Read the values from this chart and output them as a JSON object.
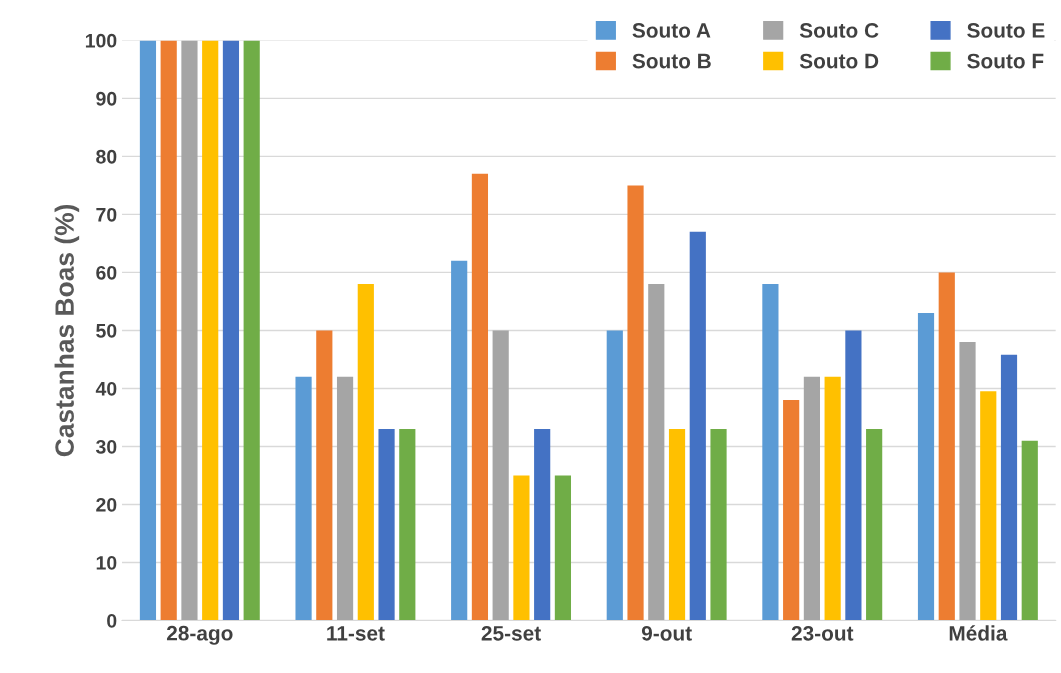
{
  "chart_data": {
    "type": "bar",
    "ylabel": "Castanhas Boas (%)",
    "categories": [
      "28-ago",
      "11-set",
      "25-set",
      "9-out",
      "23-out",
      "Média"
    ],
    "series": [
      {
        "name": "Souto A",
        "color": "#5b9bd5",
        "values": [
          100,
          42,
          62,
          50,
          58,
          53
        ]
      },
      {
        "name": "Souto B",
        "color": "#ed7d31",
        "values": [
          100,
          50,
          77,
          75,
          38,
          60
        ]
      },
      {
        "name": "Souto C",
        "color": "#a5a5a5",
        "values": [
          100,
          42,
          50,
          58,
          42,
          48
        ]
      },
      {
        "name": "Souto D",
        "color": "#ffc000",
        "values": [
          100,
          58,
          25,
          33,
          42,
          39.5
        ]
      },
      {
        "name": "Souto E",
        "color": "#4472c4",
        "values": [
          100,
          33,
          33,
          67,
          50,
          45.8
        ]
      },
      {
        "name": "Souto F",
        "color": "#70ad47",
        "values": [
          100,
          33,
          25,
          33,
          33,
          31
        ]
      }
    ],
    "ylim": [
      0,
      100
    ],
    "yticks": [
      0,
      10,
      20,
      30,
      40,
      50,
      60,
      70,
      80,
      90,
      100
    ],
    "grid": "y",
    "legend": "top right"
  }
}
